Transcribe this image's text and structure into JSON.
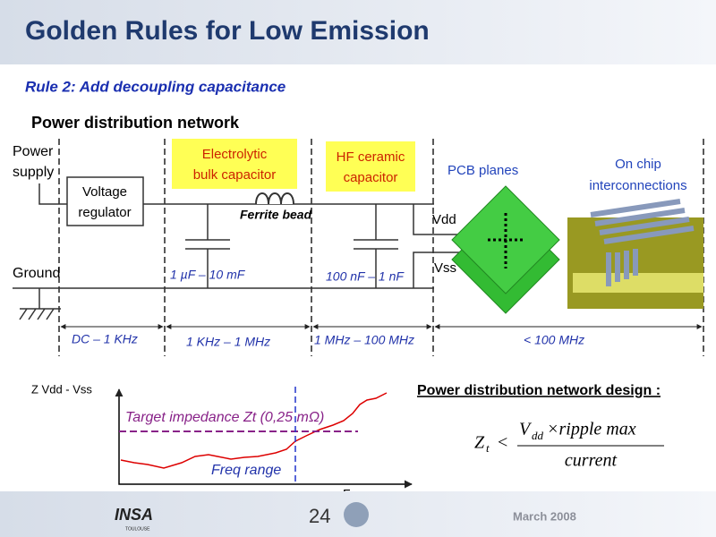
{
  "header": {
    "title": "Golden Rules for Low Emission",
    "subtitle": "Rule 2: Add decoupling capacitance"
  },
  "diagram": {
    "title": "Power distribution network",
    "power_supply": [
      "Power",
      "supply"
    ],
    "regulator": [
      "Voltage",
      "regulator"
    ],
    "ground": "Ground",
    "bulk_capacitor": [
      "Electrolytic",
      "bulk capacitor"
    ],
    "hf_capacitor": [
      "HF ceramic",
      "capacitor"
    ],
    "ferrite": "Ferrite bead",
    "bulk_range": "1 µF – 10 mF",
    "hf_range": "100 nF – 1 nF",
    "vdd": "Vdd",
    "vss": "Vss",
    "pcb": "PCB planes",
    "on_chip": [
      "On chip",
      "interconnections"
    ],
    "bands": [
      "DC – 1 KHz",
      "1 KHz – 1 MHz",
      "1 MHz – 100 MHz",
      "< 100 MHz"
    ]
  },
  "impedance_plot": {
    "y_label": "Z Vdd - Vss",
    "x_label": "Frequency",
    "target": "Target impedance Zt (0,25 mΩ)",
    "range": "Freq range"
  },
  "design": {
    "title": "Power distribution network design :",
    "formula": {
      "z": "Z",
      "z_sub": "t",
      "lt": "<",
      "v": "V",
      "v_sub": "dd",
      "rest": "×ripple max",
      "denominator": "current"
    }
  },
  "footer": {
    "page": "24",
    "logo": "INSA",
    "logo_sub": "TOULOUSE",
    "date": "March 2008"
  }
}
